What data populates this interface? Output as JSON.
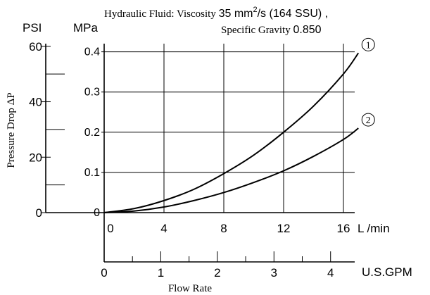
{
  "header": {
    "fluid_prefix": "Hydraulic Fluid: Viscosity ",
    "viscosity_value": "35 mm",
    "viscosity_sup": "2",
    "viscosity_suffix": "/s (164 SSU) ,",
    "gravity_prefix": "Specific Gravity ",
    "gravity_value": "0.850"
  },
  "chart_data": {
    "type": "line",
    "title": "",
    "ylabel": "Pressure Drop ΔP",
    "xlabel": "Flow Rate",
    "y_units": {
      "psi": "PSI",
      "mpa": "MPa"
    },
    "x_units": {
      "lmin": "L /min",
      "gpm": "U.S.GPM"
    },
    "xlim_lmin": [
      0,
      17
    ],
    "ylim_mpa": [
      0,
      0.4
    ],
    "ticks": {
      "lmin": [
        "0",
        "4",
        "8",
        "12",
        "16"
      ],
      "lmin_values": [
        0,
        4,
        8,
        12,
        16
      ],
      "gpm": [
        "0",
        "1",
        "2",
        "3",
        "4"
      ],
      "gpm_values": [
        0,
        1,
        2,
        3,
        4
      ],
      "mpa": [
        "0",
        "0.1",
        "0.2",
        "0.3",
        "0.4"
      ],
      "mpa_values": [
        0,
        0.1,
        0.2,
        0.3,
        0.4
      ],
      "psi": [
        "0",
        "20",
        "40",
        "60"
      ],
      "psi_values": [
        0,
        20,
        40,
        60
      ]
    },
    "series": [
      {
        "label": "①",
        "x": [
          0,
          2,
          4,
          6,
          8,
          10,
          12,
          14,
          16,
          17
        ],
        "y": [
          0,
          0.01,
          0.03,
          0.058,
          0.097,
          0.143,
          0.2,
          0.265,
          0.345,
          0.397
        ]
      },
      {
        "label": "②",
        "x": [
          0,
          2,
          4,
          6,
          8,
          10,
          12,
          14,
          16,
          17
        ],
        "y": [
          0,
          0.004,
          0.014,
          0.03,
          0.05,
          0.075,
          0.104,
          0.14,
          0.182,
          0.21
        ]
      }
    ],
    "grid": true
  }
}
